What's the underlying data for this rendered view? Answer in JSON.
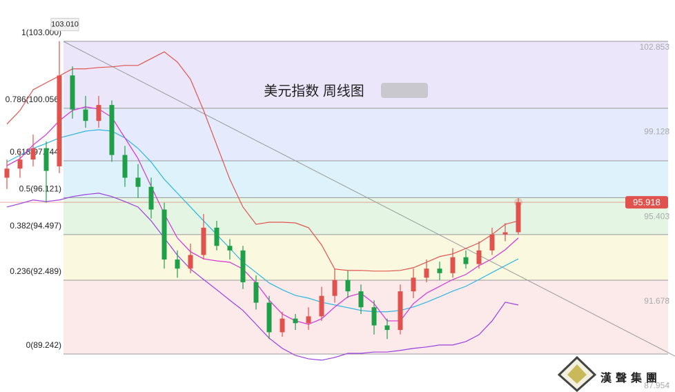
{
  "chart_data": {
    "type": "candlestick",
    "title": "美元指数 周线图",
    "brand": "漢聲集團",
    "ylim": [
      87.57,
      104.82
    ],
    "yticks": [
      102.853,
      99.128,
      95.403,
      91.678,
      87.954
    ],
    "fib_levels": [
      {
        "value": 103.0,
        "label": "1(103.000)",
        "color": "#ece6fb"
      },
      {
        "value": 100.056,
        "label": "0.786(100.056)",
        "color": "#e5ebfc"
      },
      {
        "value": 97.744,
        "label": "0.618(97.744)",
        "color": "#ddf2fb"
      },
      {
        "value": 96.121,
        "label": "0.5(96.121)",
        "color": "#e4f6e3"
      },
      {
        "value": 94.497,
        "label": "0.382(94.497)",
        "color": "#fbf8e0"
      },
      {
        "value": 92.489,
        "label": "0.236(92.489)",
        "color": "#fce9ea"
      },
      {
        "value": 89.242,
        "label": "0(89.242)",
        "color": "#fce9ea"
      }
    ],
    "high_label": {
      "value": 103.01,
      "label": "103.010"
    },
    "last_price": 95.918,
    "up_color": "#e0524e",
    "down_color": "#1f9f48",
    "open": [
      97.0,
      97.4,
      97.8,
      98.3,
      97.5,
      101.5,
      100.0,
      99.5,
      100.2,
      98.0,
      97.0,
      96.6,
      95.6,
      93.4,
      93.0,
      93.6,
      94.8,
      94.0,
      93.8,
      92.4,
      91.5,
      90.2,
      90.8,
      90.6,
      90.9,
      91.8,
      92.5,
      92.0,
      91.3,
      90.5,
      90.3,
      92.0,
      92.6,
      93.0,
      92.8,
      93.5,
      93.2,
      93.8,
      94.5,
      94.6
    ],
    "high": [
      97.8,
      98.2,
      98.9,
      98.6,
      103.01,
      101.9,
      100.6,
      100.6,
      100.4,
      98.4,
      97.6,
      97.0,
      95.9,
      93.8,
      94.1,
      95.4,
      95.1,
      94.3,
      94.0,
      92.7,
      91.8,
      91.1,
      91.0,
      91.3,
      92.2,
      93.0,
      92.9,
      92.3,
      91.6,
      90.8,
      92.3,
      93.0,
      93.4,
      93.3,
      93.9,
      93.8,
      94.2,
      94.8,
      95.0,
      96.1
    ],
    "low": [
      96.5,
      97.0,
      97.5,
      95.9,
      97.2,
      99.6,
      99.2,
      99.2,
      97.7,
      96.6,
      96.1,
      95.2,
      93.0,
      92.6,
      92.8,
      93.4,
      93.8,
      93.4,
      92.1,
      91.2,
      89.9,
      90.0,
      90.3,
      90.3,
      90.7,
      91.5,
      91.7,
      91.0,
      90.1,
      89.9,
      90.1,
      91.7,
      92.4,
      92.5,
      92.6,
      93.0,
      93.0,
      93.6,
      94.2,
      94.5
    ],
    "close": [
      97.4,
      97.8,
      98.3,
      97.3,
      101.5,
      100.0,
      99.5,
      100.2,
      98.0,
      97.0,
      96.6,
      95.6,
      93.4,
      93.0,
      93.6,
      94.8,
      94.0,
      93.8,
      92.4,
      91.5,
      90.2,
      90.8,
      90.6,
      90.9,
      91.8,
      92.5,
      92.0,
      91.3,
      90.5,
      90.3,
      92.0,
      92.6,
      93.0,
      92.8,
      93.5,
      93.2,
      93.8,
      94.5,
      94.6,
      95.918
    ],
    "lines": [
      {
        "color": "#e0524e",
        "values": [
          99.36,
          99.96,
          100.87,
          101.18,
          101.48,
          101.79,
          101.79,
          101.85,
          101.88,
          101.94,
          101.94,
          102.24,
          102.54,
          102.09,
          101.33,
          99.96,
          98.44,
          96.93,
          95.71,
          94.95,
          95.04,
          95.04,
          95.01,
          94.8,
          94.04,
          92.98,
          92.92,
          92.92,
          92.89,
          92.89,
          92.92,
          93.04,
          93.28,
          93.53,
          93.65,
          93.89,
          94.13,
          94.5,
          94.95,
          95.1
        ]
      },
      {
        "color": "#9b3fe0",
        "values": [
          95.71,
          95.86,
          96.02,
          95.95,
          96.02,
          96.17,
          96.26,
          96.32,
          96.17,
          95.95,
          95.71,
          95.1,
          94.35,
          93.59,
          92.98,
          92.52,
          92.07,
          91.61,
          91.16,
          90.55,
          89.94,
          89.49,
          89.18,
          89.03,
          88.97,
          89.09,
          89.27,
          89.27,
          89.33,
          89.33,
          89.4,
          89.49,
          89.55,
          89.64,
          89.64,
          89.79,
          90.09,
          90.7,
          91.52,
          91.4
        ]
      },
      {
        "color": "#2bb5e0",
        "values": [
          97.69,
          97.99,
          98.29,
          98.51,
          98.75,
          98.9,
          99.05,
          99.11,
          99.05,
          98.75,
          98.29,
          97.69,
          96.93,
          96.32,
          95.71,
          95.1,
          94.5,
          93.89,
          93.28,
          92.83,
          92.37,
          92.07,
          91.82,
          91.7,
          91.52,
          91.4,
          91.28,
          91.16,
          91.1,
          91.1,
          91.16,
          91.31,
          91.52,
          91.76,
          92.01,
          92.22,
          92.52,
          92.83,
          93.13,
          93.43
        ]
      },
      {
        "color": "#d631d6",
        "values": [
          97.53,
          97.84,
          98.44,
          98.9,
          99.51,
          99.96,
          100.12,
          100.02,
          99.66,
          98.75,
          97.84,
          96.62,
          95.41,
          94.35,
          93.74,
          93.43,
          93.34,
          93.28,
          92.98,
          92.37,
          91.61,
          91.0,
          90.7,
          90.55,
          90.79,
          91.31,
          91.76,
          91.92,
          91.46,
          90.7,
          90.7,
          91.46,
          91.92,
          92.22,
          92.52,
          92.74,
          93.13,
          93.43,
          93.83,
          94.35
        ]
      }
    ]
  }
}
